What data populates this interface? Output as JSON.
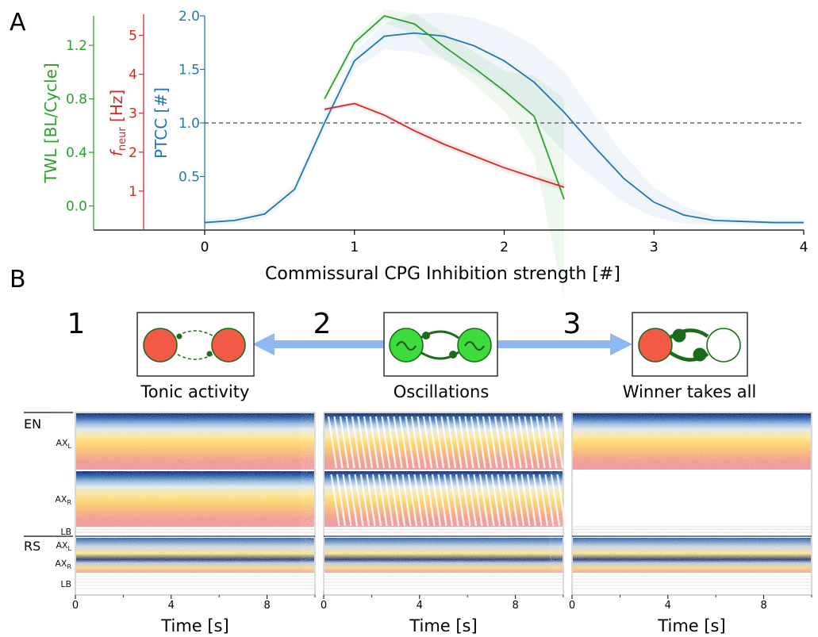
{
  "panel_labels": [
    "A",
    "B"
  ],
  "colors": {
    "twl": "#2ca02c",
    "freq": "#d62728",
    "ptcc": "#1f77b4",
    "ref": "#444444",
    "node_active": "#f25a46",
    "node_osc": "#3ddc3d",
    "edge": "#1a6b1a",
    "arrow": "#8fb8f0"
  },
  "chart_data": [
    {
      "type": "line",
      "panel": "A",
      "xlabel": "Commissural CPG Inhibition strength [#]",
      "xlim": [
        0,
        4
      ],
      "xticks": [
        0,
        1,
        2,
        3,
        4
      ],
      "axes": {
        "twl": {
          "label_main": "TWL [BL/Cycle]",
          "ylim": [
            -0.18,
            1.42
          ],
          "ticks": [
            0.0,
            0.4,
            0.8,
            1.2
          ],
          "tick_labels": [
            "0.0",
            "0.4",
            "0.8",
            "1.2"
          ]
        },
        "freq": {
          "label_f": "f",
          "label_sub": "neur",
          "label_rest": " [Hz]",
          "ylim": [
            0.0,
            5.5
          ],
          "ticks": [
            1,
            2,
            3,
            4,
            5
          ],
          "tick_labels": [
            "1",
            "2",
            "3",
            "4",
            "5"
          ]
        },
        "ptcc": {
          "label_main": "PTCC [#]",
          "ylim": [
            0.0,
            2.0
          ],
          "ticks": [
            0.5,
            1.0,
            1.5,
            2.0
          ],
          "tick_labels": [
            "0.5",
            "1.0",
            "1.5",
            "2.0"
          ]
        }
      },
      "reference_line": {
        "axis": "ptcc",
        "y": 1.0,
        "style": "dashed"
      },
      "series": [
        {
          "key": "ptcc",
          "axis": "ptcc",
          "x": [
            0,
            0.2,
            0.4,
            0.6,
            0.8,
            1.0,
            1.2,
            1.4,
            1.6,
            1.8,
            2.0,
            2.2,
            2.4,
            2.6,
            2.8,
            3.0,
            3.2,
            3.4,
            3.6,
            3.8,
            4.0
          ],
          "y": [
            0.07,
            0.09,
            0.15,
            0.38,
            1.0,
            1.58,
            1.81,
            1.84,
            1.81,
            1.72,
            1.58,
            1.38,
            1.1,
            0.78,
            0.48,
            0.26,
            0.14,
            0.09,
            0.08,
            0.07,
            0.07
          ],
          "band": [
            0.03,
            0.03,
            0.04,
            0.05,
            0.06,
            0.08,
            0.12,
            0.18,
            0.22,
            0.26,
            0.3,
            0.34,
            0.38,
            0.3,
            0.22,
            0.14,
            0.08,
            0.04,
            0.03,
            0.02,
            0.02
          ]
        },
        {
          "key": "twl",
          "axis": "twl",
          "x": [
            0.8,
            1.0,
            1.2,
            1.4,
            1.6,
            1.8,
            2.0,
            2.2,
            2.4
          ],
          "y": [
            0.8,
            1.22,
            1.42,
            1.36,
            1.19,
            1.03,
            0.86,
            0.67,
            0.05
          ],
          "band": [
            0.03,
            0.04,
            0.05,
            0.08,
            0.1,
            0.12,
            0.15,
            0.3,
            0.75
          ]
        },
        {
          "key": "freq",
          "axis": "freq",
          "x": [
            0.8,
            1.0,
            1.2,
            1.4,
            1.6,
            1.8,
            2.0,
            2.2,
            2.4
          ],
          "y": [
            3.1,
            3.25,
            2.95,
            2.55,
            2.2,
            1.9,
            1.6,
            1.35,
            1.1
          ],
          "band": [
            0.05,
            0.06,
            0.08,
            0.1,
            0.1,
            0.1,
            0.1,
            0.1,
            0.1
          ]
        }
      ]
    },
    {
      "type": "heatmap",
      "panel": "B",
      "rasters": [
        {
          "id": "tonic",
          "mode": "tonic"
        },
        {
          "id": "oscillations",
          "mode": "oscillations"
        },
        {
          "id": "winner",
          "mode": "winner"
        }
      ],
      "xlabel": "Time [s]",
      "xticks": [
        0,
        4,
        8
      ],
      "xlim": [
        0,
        10
      ],
      "group_labels": {
        "en": "EN",
        "rs": "RS"
      },
      "row_labels": {
        "axl_main": "AX",
        "axl_sub": "L",
        "axr_main": "AX",
        "axr_sub": "R",
        "lb": "LB"
      }
    }
  ],
  "stages": [
    {
      "number": "1",
      "caption": "Tonic activity"
    },
    {
      "number": "2",
      "caption": "Oscillations"
    },
    {
      "number": "3",
      "caption": "Winner takes all"
    }
  ]
}
